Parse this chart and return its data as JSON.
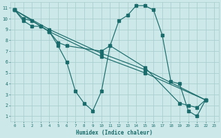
{
  "xlabel": "Humidex (Indice chaleur)",
  "xlim": [
    -0.5,
    23.5
  ],
  "ylim": [
    0.5,
    11.5
  ],
  "xticks": [
    0,
    1,
    2,
    3,
    4,
    5,
    6,
    7,
    8,
    9,
    10,
    11,
    12,
    13,
    14,
    15,
    16,
    17,
    18,
    19,
    20,
    21,
    22,
    23
  ],
  "yticks": [
    1,
    2,
    3,
    4,
    5,
    6,
    7,
    8,
    9,
    10,
    11
  ],
  "background_color": "#cce8e8",
  "grid_color": "#aacece",
  "line_color": "#1a6b6b",
  "curve1_x": [
    0,
    1,
    2,
    3,
    4,
    5,
    6,
    7,
    8,
    9,
    10,
    11,
    12,
    13,
    14,
    15,
    16,
    17,
    18,
    19,
    20,
    21,
    22
  ],
  "curve1_y": [
    10.8,
    10.0,
    9.8,
    9.3,
    8.8,
    7.5,
    6.0,
    3.3,
    2.2,
    1.5,
    3.3,
    7.5,
    9.8,
    10.3,
    11.2,
    11.2,
    10.8,
    8.5,
    4.2,
    4.0,
    1.5,
    1.0,
    2.5
  ],
  "curve2_x": [
    0,
    1,
    2,
    3,
    4,
    5,
    6,
    10,
    11,
    15,
    19,
    20,
    21,
    22
  ],
  "curve2_y": [
    10.8,
    9.8,
    9.3,
    9.3,
    8.8,
    7.8,
    7.5,
    7.0,
    7.5,
    5.5,
    2.2,
    2.0,
    1.8,
    2.5
  ],
  "curve3_x": [
    0,
    4,
    10,
    15,
    22
  ],
  "curve3_y": [
    10.8,
    9.0,
    6.8,
    5.3,
    2.5
  ],
  "curve4_x": [
    0,
    4,
    10,
    15,
    22
  ],
  "curve4_y": [
    10.8,
    8.8,
    6.5,
    5.0,
    2.5
  ]
}
